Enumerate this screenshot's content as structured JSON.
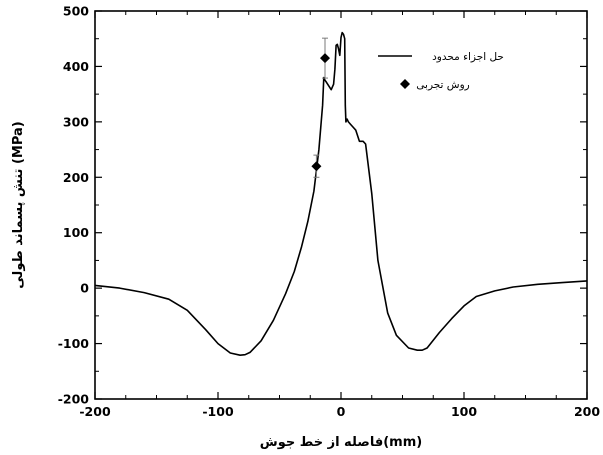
{
  "chart_data": {
    "type": "line",
    "xlabel": "فاصله از خط جوش(mm)",
    "ylabel": "تنش پسماند طولی (MPa)",
    "xlim": [
      -200,
      200
    ],
    "ylim": [
      -200,
      500
    ],
    "xticks": [
      -200,
      -100,
      0,
      100,
      200
    ],
    "yticks": [
      -200,
      -100,
      0,
      100,
      200,
      300,
      400,
      500
    ],
    "grid": false,
    "legend_position": "top-right",
    "colors": {
      "line": "#000000",
      "marker": "#000000",
      "errorbar": "#7a7a7a"
    },
    "series": [
      {
        "name": "حل اجزاء محدود",
        "kind": "line",
        "x": [
          -200,
          -180,
          -160,
          -140,
          -125,
          -110,
          -100,
          -90,
          -82,
          -78,
          -74,
          -65,
          -55,
          -45,
          -38,
          -32,
          -27,
          -22,
          -18,
          -15,
          -14,
          -13,
          -12,
          -10,
          -8,
          -6,
          -5,
          -4,
          -3,
          -2,
          -1,
          0,
          1,
          2,
          3,
          3.5,
          4,
          5,
          6,
          8,
          10,
          12,
          15,
          18,
          20,
          25,
          30,
          38,
          45,
          55,
          62,
          66,
          70,
          80,
          90,
          100,
          110,
          125,
          140,
          160,
          180,
          200
        ],
        "y": [
          5,
          0,
          -8,
          -20,
          -40,
          -75,
          -100,
          -117,
          -121,
          -120,
          -116,
          -95,
          -58,
          -10,
          30,
          75,
          120,
          175,
          250,
          330,
          380,
          375,
          372,
          365,
          358,
          368,
          395,
          438,
          440,
          432,
          420,
          452,
          461,
          458,
          450,
          330,
          300,
          305,
          300,
          295,
          290,
          285,
          265,
          265,
          260,
          170,
          50,
          -45,
          -85,
          -108,
          -112,
          -112,
          -108,
          -80,
          -55,
          -32,
          -15,
          -5,
          2,
          7,
          10,
          13
        ]
      },
      {
        "name": "روش تجربی",
        "kind": "scatter",
        "x": [
          -20,
          -13
        ],
        "y": [
          220,
          415
        ],
        "yerr": [
          20,
          36
        ]
      }
    ]
  }
}
